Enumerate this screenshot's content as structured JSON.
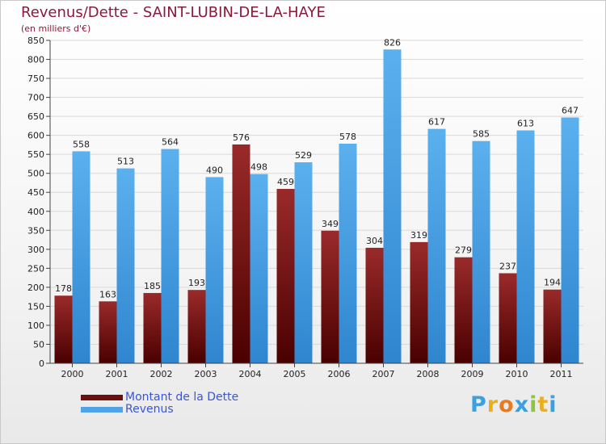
{
  "chart_data": {
    "type": "bar",
    "title": "Revenus/Dette - SAINT-LUBIN-DE-LA-HAYE",
    "subtitle": "(en milliers d'€)",
    "categories": [
      "2000",
      "2001",
      "2002",
      "2003",
      "2004",
      "2005",
      "2006",
      "2007",
      "2008",
      "2009",
      "2010",
      "2011"
    ],
    "series": [
      {
        "name": "Montant de la Dette",
        "color": "#7a1414",
        "values": [
          178,
          163,
          185,
          193,
          576,
          459,
          349,
          304,
          319,
          279,
          237,
          194
        ]
      },
      {
        "name": "Revenus",
        "color": "#4fa3e6",
        "values": [
          558,
          513,
          564,
          490,
          498,
          529,
          578,
          826,
          617,
          585,
          613,
          647
        ]
      }
    ],
    "ylim": [
      0,
      850
    ],
    "yticks": [
      0,
      50,
      100,
      150,
      200,
      250,
      300,
      350,
      400,
      450,
      500,
      550,
      600,
      650,
      700,
      750,
      800,
      850
    ],
    "grid": true,
    "legend_position": "bottom-left"
  },
  "legend": {
    "items": [
      {
        "label": "Montant de la Dette",
        "color": "#6b0f0f"
      },
      {
        "label": "Revenus",
        "color": "#4fa3e6"
      }
    ]
  },
  "logo": {
    "letters": [
      "P",
      "r",
      "o",
      "x",
      "i",
      "t",
      "i"
    ],
    "colors": [
      "#3aa0e0",
      "#e8b020",
      "#e87a20",
      "#3aa0e0",
      "#8cc63f",
      "#e8b020",
      "#3aa0e0"
    ]
  }
}
